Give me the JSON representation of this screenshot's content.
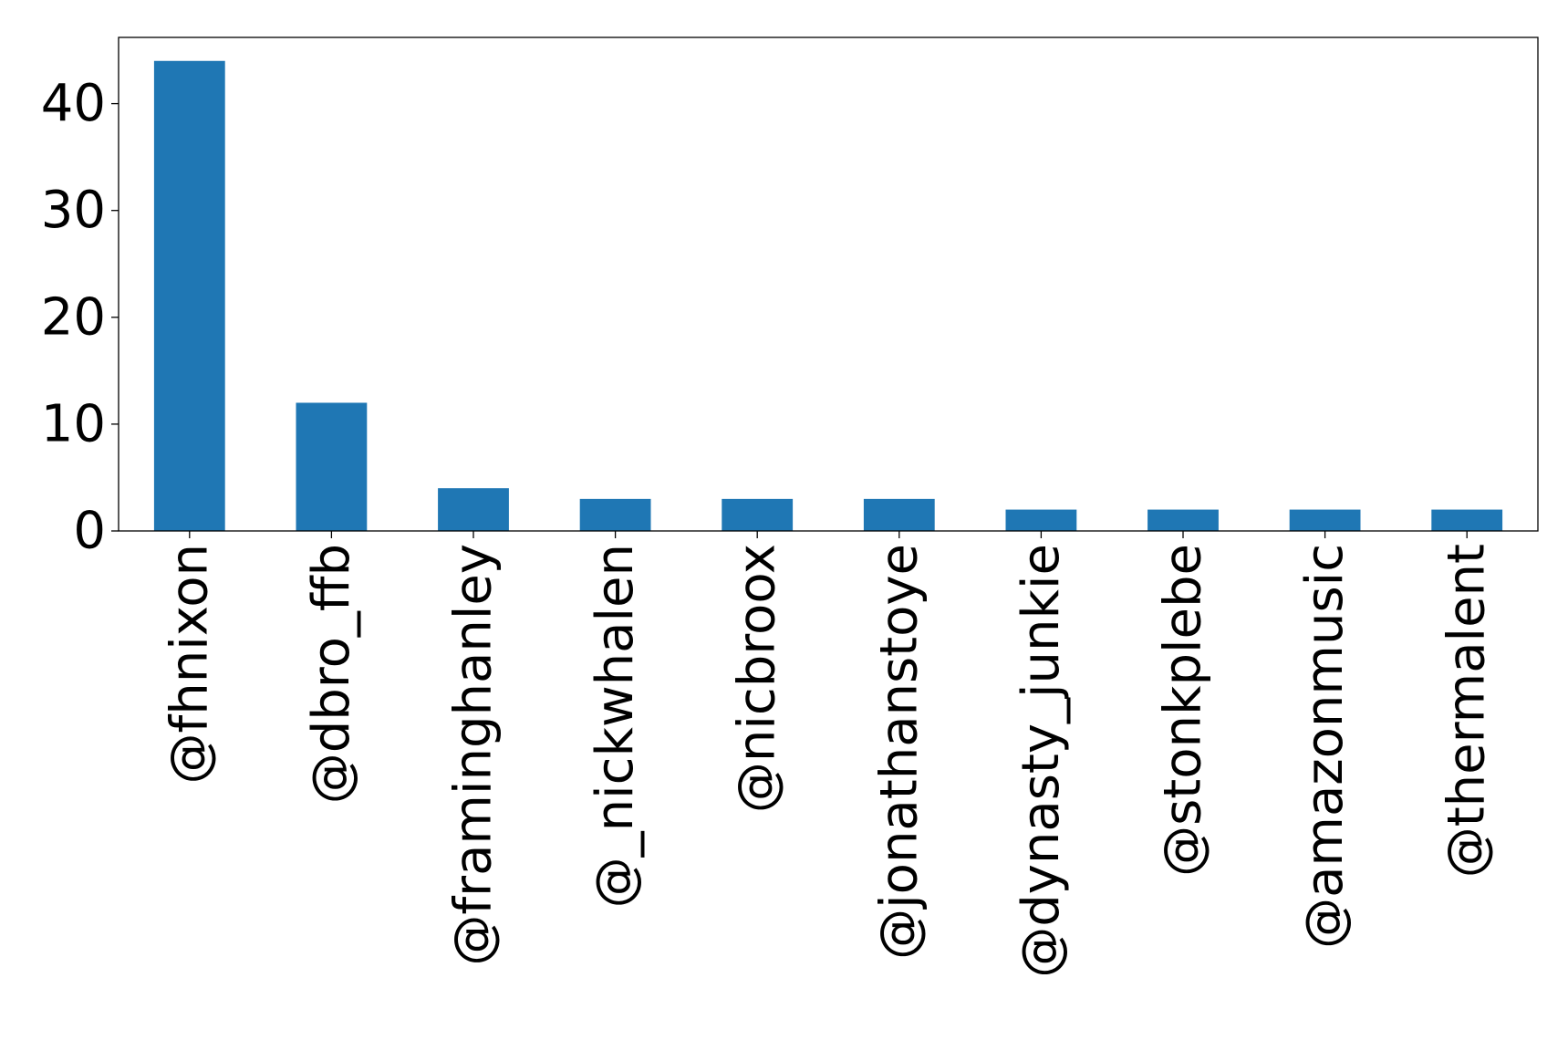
{
  "chart_data": {
    "type": "bar",
    "title": "",
    "xlabel": "",
    "ylabel": "",
    "categories": [
      "@fhnixon",
      "@dbro_ffb",
      "@framinghanley",
      "@_nickwhalen",
      "@nicbroox",
      "@jonathanstoye",
      "@dynasty_junkie",
      "@stonkplebe",
      "@amazonmusic",
      "@thermalent"
    ],
    "values": [
      44,
      12,
      4,
      3,
      3,
      3,
      2,
      2,
      2,
      2
    ],
    "ylim": [
      0,
      46.2
    ],
    "yticks": [
      0,
      10,
      20,
      30,
      40
    ],
    "legend": "none",
    "grid": false,
    "colors": {
      "bar": "#1f77b4",
      "axis": "#000000"
    }
  }
}
